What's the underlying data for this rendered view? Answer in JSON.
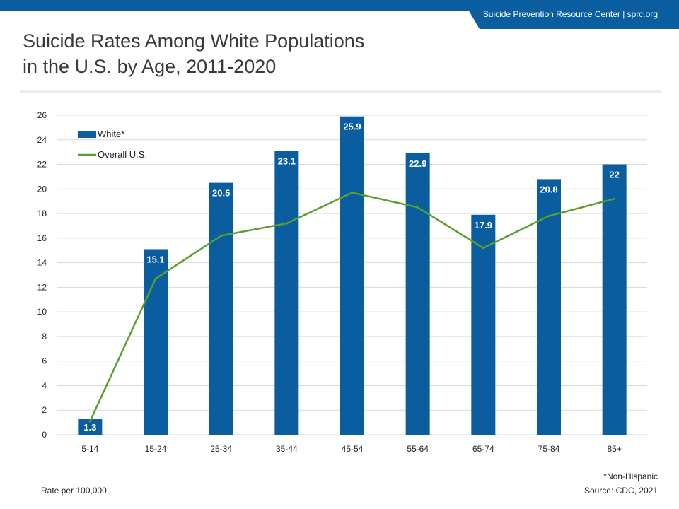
{
  "header": {
    "banner": "Suicide Prevention Resource Center  |  sprc.org",
    "title_line1": "Suicide Rates Among White Populations",
    "title_line2": "in the U.S. by Age, 2011-2020"
  },
  "footer": {
    "unit_note": "Rate per 100,000",
    "note": "*Non-Hispanic",
    "source": "Source: CDC, 2021"
  },
  "chart_data": {
    "type": "bar",
    "title": "Suicide Rates Among White Populations in the U.S. by Age, 2011-2020",
    "categories": [
      "5-14",
      "15-24",
      "25-34",
      "35-44",
      "45-54",
      "55-64",
      "65-74",
      "75-84",
      "85+"
    ],
    "series": [
      {
        "name": "White*",
        "type": "bar",
        "color": "#0a5ea0",
        "values": [
          1.3,
          15.1,
          20.5,
          23.1,
          25.9,
          22.9,
          17.9,
          20.8,
          22
        ],
        "labels": [
          "1.3",
          "15.1",
          "20.5",
          "23.1",
          "25.9",
          "22.9",
          "17.9",
          "20.8",
          "22"
        ]
      },
      {
        "name": "Overall U.S.",
        "type": "line",
        "color": "#5a9e2f",
        "values": [
          1.1,
          12.7,
          16.2,
          17.2,
          19.7,
          18.5,
          15.2,
          17.8,
          19.2
        ]
      }
    ],
    "ylim": [
      0,
      26
    ],
    "yticks": [
      "0",
      "2",
      "4",
      "6",
      "8",
      "10",
      "12",
      "14",
      "16",
      "18",
      "20",
      "22",
      "24",
      "26"
    ],
    "grid": true,
    "legend_position": "top-left"
  }
}
